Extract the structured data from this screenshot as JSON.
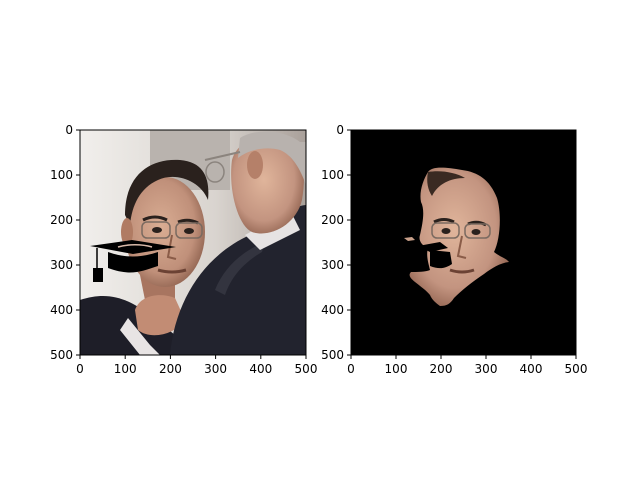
{
  "figure": {
    "background": "#ffffff",
    "axis_color": "#000000",
    "panels": [
      {
        "id": "left",
        "content": "photograph of two men in suits with a black graduation-cap overlay",
        "xticks": [
          "0",
          "100",
          "200",
          "300",
          "400",
          "500"
        ],
        "yticks": [
          "0",
          "100",
          "200",
          "300",
          "400",
          "500"
        ]
      },
      {
        "id": "right",
        "content": "masked face region on black background",
        "xticks": [
          "0",
          "100",
          "200",
          "300",
          "400",
          "500"
        ],
        "yticks": [
          "0",
          "100",
          "200",
          "300",
          "400",
          "500"
        ]
      }
    ]
  },
  "colors": {
    "photo_bg_light": "#e9e6e2",
    "photo_bg_shadow": "#a9a09a",
    "skin": "#c79a82",
    "skin_dark": "#9a6c56",
    "hair": "#2a211d",
    "gray_hair": "#b8b2ae",
    "suit": "#1e1e28",
    "suit_light": "#33343f",
    "shirt": "#e8e4e4",
    "mask_bg": "#000000",
    "cap": "#000000"
  }
}
